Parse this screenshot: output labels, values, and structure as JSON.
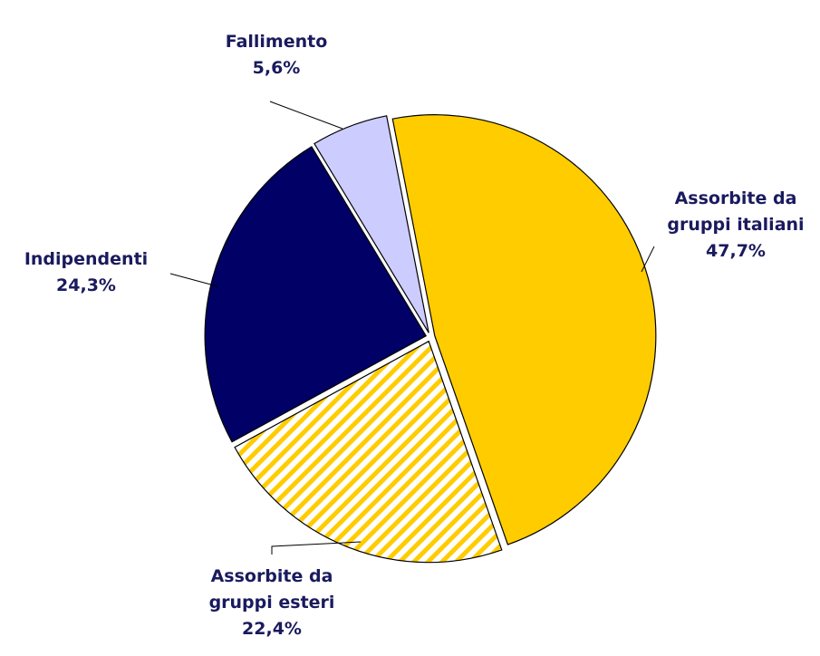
{
  "chart_data": {
    "type": "pie",
    "categories": [
      "Assorbite da gruppi italiani",
      "Assorbite da gruppi esteri",
      "Indipendenti",
      "Fallimento"
    ],
    "values": [
      47.7,
      22.4,
      24.3,
      5.6
    ],
    "value_labels": [
      "47,7%",
      "22,4%",
      "24,3%",
      "5,6%"
    ],
    "colors": [
      "#ffcc00",
      "hatch",
      "#000066",
      "#ccccff"
    ]
  }
}
